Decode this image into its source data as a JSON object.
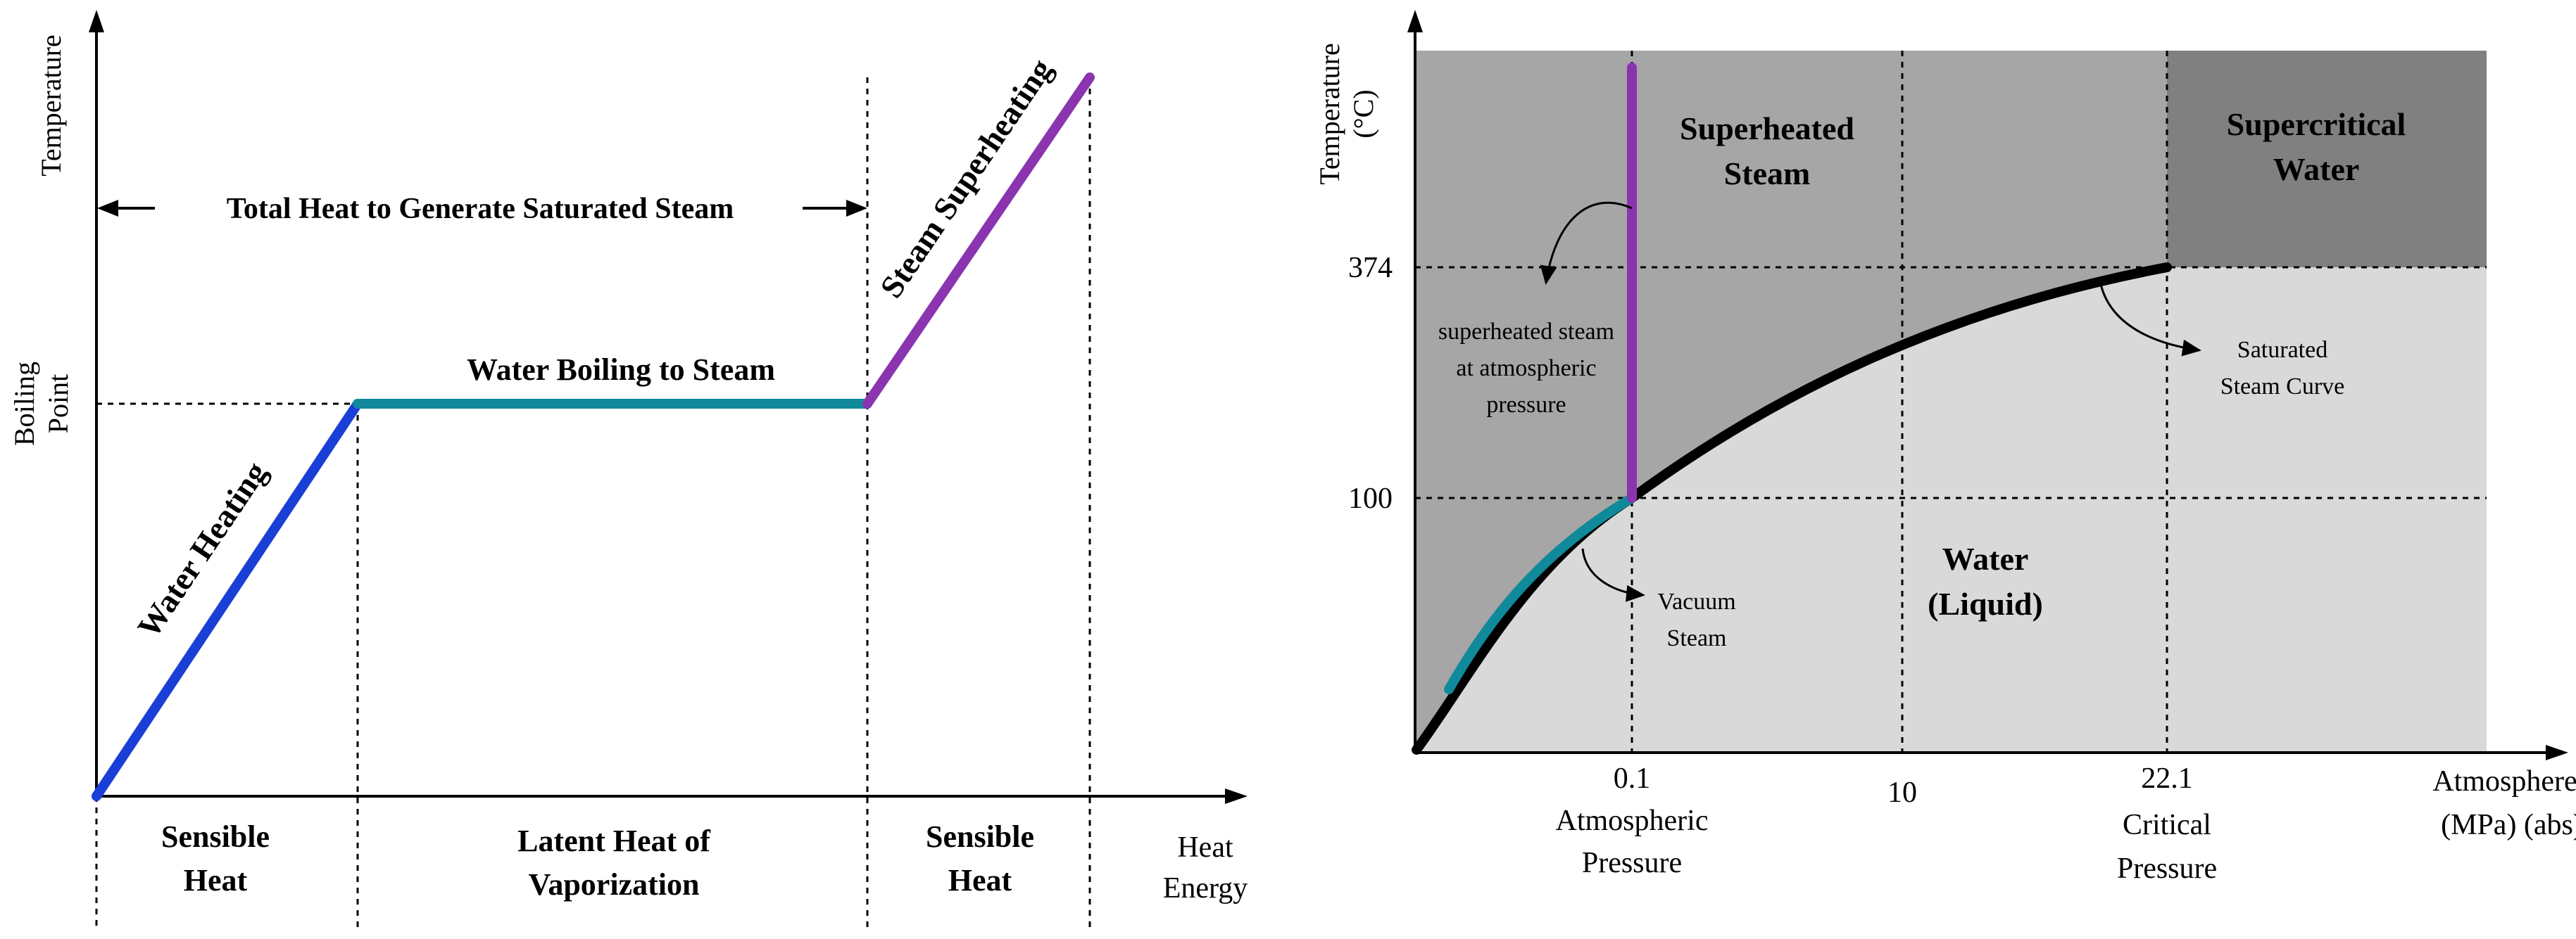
{
  "left_diagram": {
    "y_axis_label": "Temperature",
    "boiling_point_label_line1": "Boiling",
    "boiling_point_label_line2": "Point",
    "total_heat_label": "Total Heat to Generate Saturated Steam",
    "water_heating_label": "Water Heating",
    "water_boiling_label": "Water Boiling to Steam",
    "steam_superheating_label": "Steam Superheating",
    "sensible_heat_1_line1": "Sensible",
    "sensible_heat_1_line2": "Heat",
    "latent_heat_line1": "Latent Heat of",
    "latent_heat_line2": "Vaporization",
    "sensible_heat_2_line1": "Sensible",
    "sensible_heat_2_line2": "Heat",
    "x_axis_label_line1": "Heat",
    "x_axis_label_line2": "Energy"
  },
  "right_diagram": {
    "y_axis_label_line1": "Temperature",
    "y_axis_label_line2": "(°C)",
    "y_tick_374": "374",
    "y_tick_100": "100",
    "x_tick_01": "0.1",
    "x_tick_01_sub1": "Atmospheric",
    "x_tick_01_sub2": "Pressure",
    "x_tick_10": "10",
    "x_tick_221": "22.1",
    "x_tick_221_sub1": "Critical",
    "x_tick_221_sub2": "Pressure",
    "x_axis_label_line1": "Atmosphere",
    "x_axis_label_line2": "(MPa) (abs)",
    "superheated_steam_line1": "Superheated",
    "superheated_steam_line2": "Steam",
    "supercritical_line1": "Supercritical",
    "supercritical_line2": "Water",
    "water_liquid_line1": "Water",
    "water_liquid_line2": "(Liquid)",
    "annot_superheated_line1": "superheated steam",
    "annot_superheated_line2": "at atmospheric",
    "annot_superheated_line3": "pressure",
    "annot_saturated_line1": "Saturated",
    "annot_saturated_line2": "Steam Curve",
    "annot_vacuum_line1": "Vacuum",
    "annot_vacuum_line2": "Steam"
  },
  "colors": {
    "water_heating": "#1a3fd6",
    "boiling": "#108a9a",
    "superheating": "#8a34b0",
    "region_dark": "#a6a6a6",
    "region_darker": "#808080",
    "region_light": "#d9d9d9",
    "curve": "#000000"
  }
}
